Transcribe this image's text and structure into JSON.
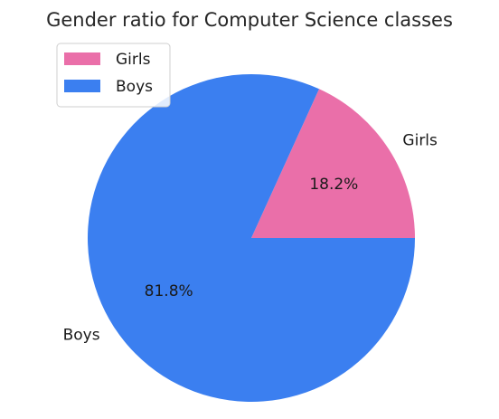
{
  "chart_data": {
    "type": "pie",
    "title": "Gender ratio for Computer Science classes",
    "categories": [
      "Girls",
      "Boys"
    ],
    "values": [
      18.2,
      81.8
    ],
    "value_labels": [
      "18.2%",
      "81.8%"
    ],
    "colors": [
      "#ea6fa9",
      "#3b7ff0"
    ],
    "start_angle_deg": 0,
    "direction": "counterclockwise",
    "legend": {
      "placement": "top-left",
      "entries": [
        "Girls",
        "Boys"
      ]
    }
  }
}
